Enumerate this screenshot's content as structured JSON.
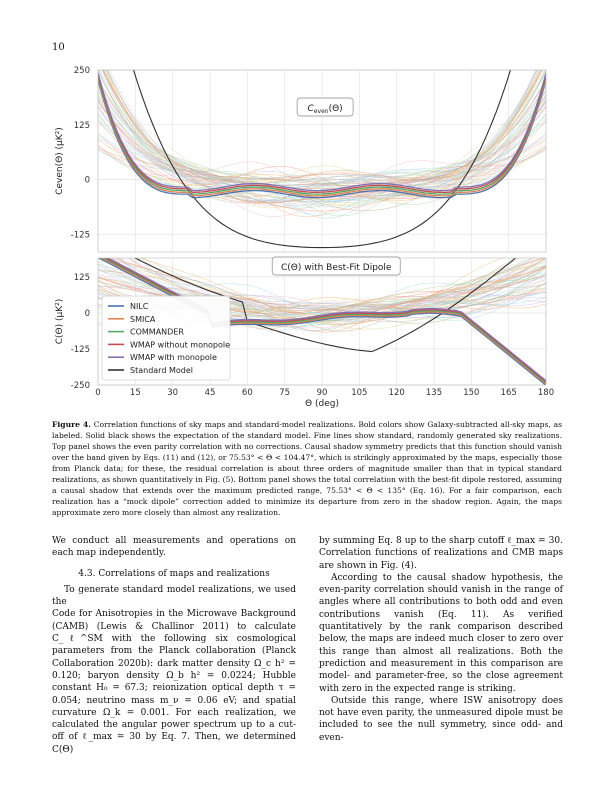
{
  "page_number": "10",
  "figure": {
    "top_panel": {
      "label": "C_even(Θ)",
      "label_main": "C",
      "label_sub": "even",
      "label_arg": "(Θ)",
      "ylabel": "Ceven(Θ) (μK²)",
      "yticks": [
        "250",
        "125",
        "0",
        "-125"
      ]
    },
    "bottom_panel": {
      "label": "C(Θ) with Best-Fit Dipole",
      "ylabel": "C(Θ) (μK²)",
      "yticks": [
        "125",
        "0",
        "-125",
        "-250"
      ]
    },
    "xlabel": "Θ (deg)",
    "xticks": [
      "0",
      "15",
      "30",
      "45",
      "60",
      "75",
      "90",
      "105",
      "120",
      "135",
      "150",
      "165",
      "180"
    ],
    "legend": [
      {
        "name": "NILC",
        "color": "#4c72b0"
      },
      {
        "name": "SMICA",
        "color": "#dd8452"
      },
      {
        "name": "COMMANDER",
        "color": "#55a868"
      },
      {
        "name": "WMAP without monopole",
        "color": "#c44e52"
      },
      {
        "name": "WMAP with monopole",
        "color": "#8172b3"
      },
      {
        "name": "Standard Model",
        "color": "#333333"
      }
    ]
  },
  "caption": {
    "label": "Figure 4.",
    "text": "Correlation functions of sky maps and standard-model realizations. Bold colors show Galaxy-subtracted all-sky maps, as labeled. Solid black shows the expectation of the standard model. Fine lines show standard, randomly generated sky realizations. Top panel shows the even parity correlation with no corrections. Causal shadow symmetry predicts that this function should vanish over the band given by Eqs. (11) and (12), or 75.53° < Θ < 104.47°, which is strikingly approximated by the maps, especially those from Planck data; for these, the residual correlation is about three orders of magnitude smaller than that in typical standard realizations, as shown quantitatively in Fig. (5). Bottom panel shows the total correlation with the best-fit dipole restored, assuming a causal shadow that extends over the maximum predicted range, 75.53° < Θ < 135° (Eq. 16). For a fair comparison, each realization has a “mock dipole” correction added to minimize its departure from zero in the shadow region. Again, the maps approximate zero more closely than almost any realization."
  },
  "left_column": {
    "p1": "We conduct all measurements and operations on each map independently.",
    "section": "4.3.  Correlations of maps and realizations",
    "p2a": "To generate standard model realizations, we used the",
    "p2b": "Code for Anisotropies in the Microwave Background (CAMB) (Lewis & Challinor 2011) to calculate C_ℓ^SM with the following six cosmological parameters from the Planck collaboration (Planck Collaboration 2020b): dark matter density Ω_c h² = 0.120; baryon density Ω_b h² = 0.0224; Hubble constant H₀ = 67.3; reionization optical depth τ = 0.054; neutrino mass m_ν = 0.06 eV; and spatial curvature Ω_k = 0.001. For each realization, we calculated the angular power spectrum up to a cut-off of ℓ_max = 30 by Eq. 7. Then, we determined C(Θ)"
  },
  "right_column": {
    "p1": "by summing Eq. 8 up to the sharp cutoff ℓ_max = 30. Correlation functions of realizations and CMB maps are shown in Fig. (4).",
    "p2": "According to the causal shadow hypothesis, the even-parity correlation should vanish in the range of angles where all contributions to both odd and even contributions vanish (Eq. 11). As verified quantitatively by the rank comparison described below, the maps are indeed much closer to zero over this range than almost all realizations. Both the prediction and measurement in this comparison are model- and parameter-free, so the close agreement with zero in the expected range is striking.",
    "p3": "Outside this range, where ISW anisotropy does not have even parity, the unmeasured dipole must be included to see the null symmetry, since odd- and even-"
  }
}
